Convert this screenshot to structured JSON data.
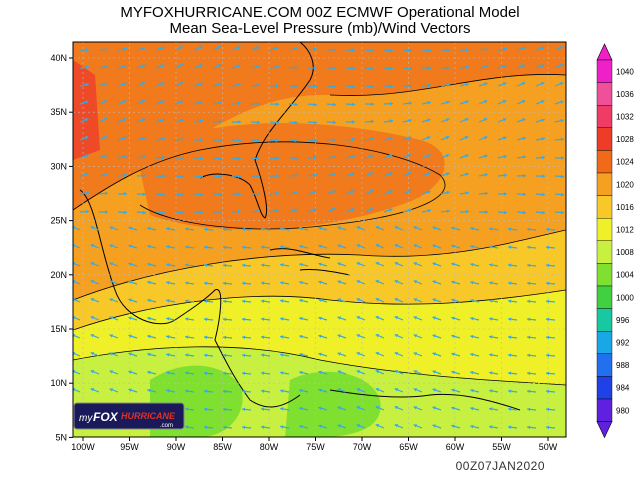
{
  "header": {
    "title": "MYFOXHURRICANE.COM 00Z ECMWF Operational Model",
    "subtitle": "Mean Sea-Level Pressure (mb)/Wind Vectors"
  },
  "map": {
    "lon_labels": [
      "100W",
      "95W",
      "90W",
      "85W",
      "80W",
      "75W",
      "70W",
      "65W",
      "60W",
      "55W",
      "50W"
    ],
    "lat_labels": [
      "40N",
      "35N",
      "30N",
      "25N",
      "20N",
      "15N",
      "10N",
      "5N"
    ]
  },
  "colorbar": {
    "levels": [
      1040,
      1036,
      1032,
      1028,
      1024,
      1020,
      1016,
      1012,
      1008,
      1004,
      1000,
      996,
      992,
      988,
      984,
      980
    ],
    "colors": [
      "#f020c8",
      "#f0509a",
      "#f03c64",
      "#ee3c28",
      "#f06a18",
      "#f5a020",
      "#f8c828",
      "#f0f028",
      "#c8f040",
      "#80e030",
      "#40d040",
      "#18c8a0",
      "#18a8e8",
      "#2070f0",
      "#2040e8",
      "#6020e0"
    ]
  },
  "logo": {
    "my": "my",
    "fox": "FOX",
    "hurricane": "HURRICANE",
    "com": ".com"
  },
  "timestamp": "00Z07JAN2020"
}
